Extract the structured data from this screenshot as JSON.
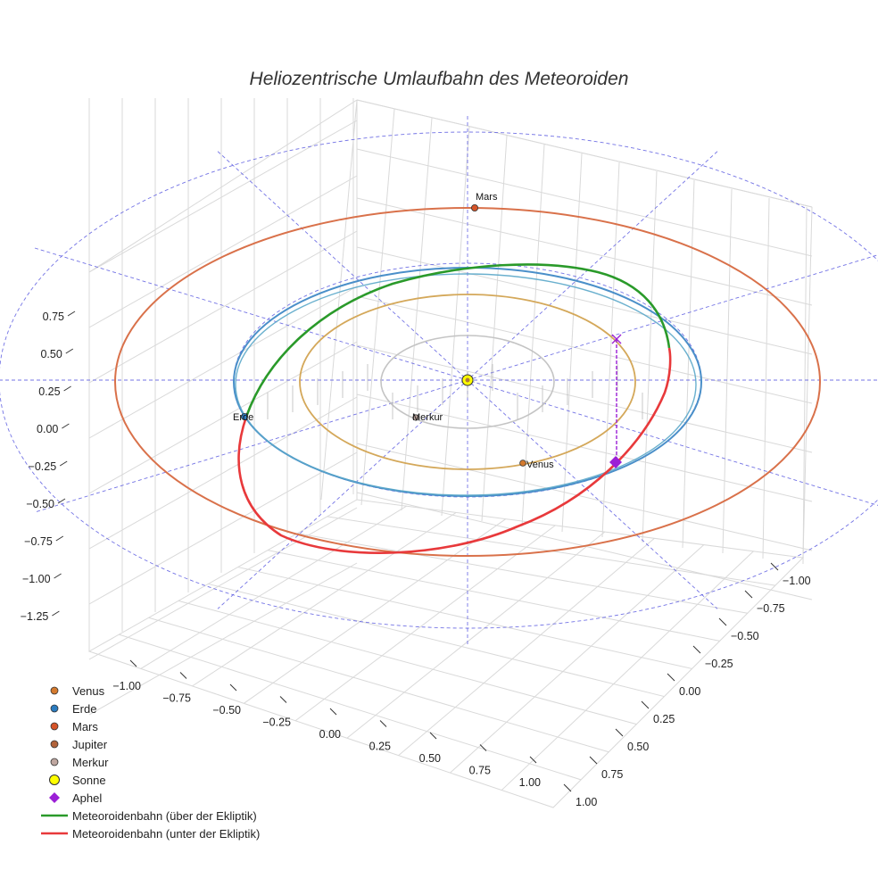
{
  "chart_data": {
    "type": "line",
    "title": "Heliozentrische Umlaufbahn des Meteoroiden",
    "z_ticks": [
      "0.75",
      "0.50",
      "0.25",
      "0.00",
      "−0.25",
      "−0.50",
      "−0.75",
      "−1.00",
      "−1.25"
    ],
    "x_ticks": [
      "−1.00",
      "−0.75",
      "−0.50",
      "−0.25",
      "0.00",
      "0.25",
      "0.50",
      "0.75",
      "1.00"
    ],
    "y_ticks": [
      "−1.00",
      "−0.75",
      "−0.50",
      "−0.25",
      "0.00",
      "0.25",
      "0.50",
      "0.75",
      "1.00"
    ],
    "planet_labels": {
      "mars": "Mars",
      "erde": "Erde",
      "merkur": "Merkur",
      "venus": "Venus"
    },
    "orbit_radii_au": {
      "merkur": 0.39,
      "venus": 0.72,
      "erde": 1.0,
      "mars": 1.52
    },
    "meteoroid_orbit": {
      "perihelion_au": 0.98,
      "aphelion_au": 1.05,
      "ecliptic_crossing": "Erde"
    },
    "colors": {
      "merkur_orbit": "#c4c4c4",
      "venus_orbit": "#d4a85a",
      "erde_orbit": "#4a8fc9",
      "mars_orbit": "#d9714a",
      "above": "#2a9a2a",
      "below": "#e8393b",
      "grid": "#d9d9d9",
      "reference": "#5a5ae0",
      "aphel": "#9b1fd6"
    },
    "legend": [
      {
        "label": "Venus",
        "symbol": "dot",
        "color": "#d47a2e"
      },
      {
        "label": "Erde",
        "symbol": "dot",
        "color": "#2a7bbf"
      },
      {
        "label": "Mars",
        "symbol": "dot",
        "color": "#d65428"
      },
      {
        "label": "Jupiter",
        "symbol": "dot",
        "color": "#b1623a"
      },
      {
        "label": "Merkur",
        "symbol": "dot",
        "color": "#bfa7a0"
      },
      {
        "label": "Sonne",
        "symbol": "sun",
        "color": "#ffff00"
      },
      {
        "label": "Aphel",
        "symbol": "diamond",
        "color": "#9b1fd6"
      },
      {
        "label": "Meteoroidenbahn (über der Ekliptik)",
        "symbol": "line",
        "color": "#2a9a2a"
      },
      {
        "label": "Meteoroidenbahn (unter der Ekliptik)",
        "symbol": "line",
        "color": "#e8393b"
      }
    ]
  }
}
